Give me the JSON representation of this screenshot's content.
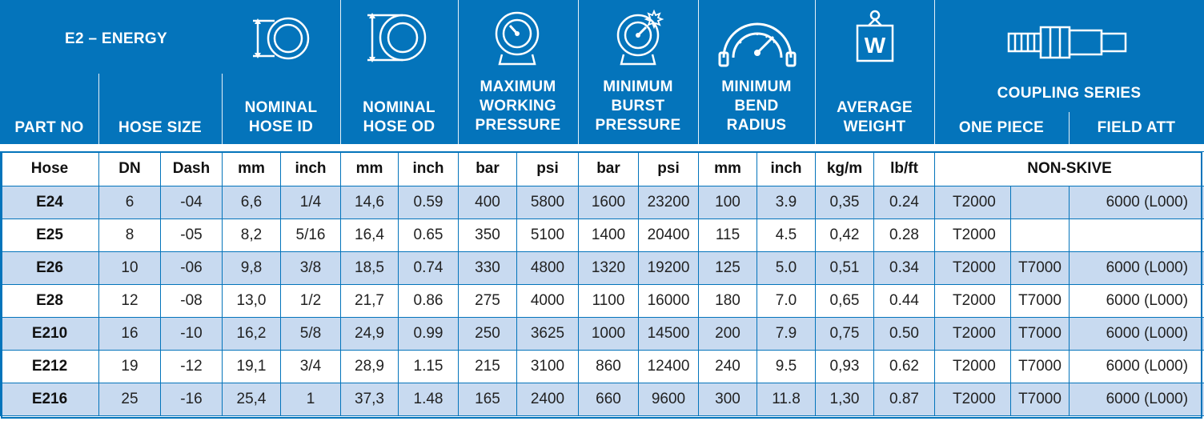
{
  "header": {
    "series_title": "E2 – ENERGY",
    "part_no": "PART NO",
    "hose_size": "HOSE SIZE",
    "nominal_id": [
      "NOMINAL",
      "HOSE ID"
    ],
    "nominal_od": [
      "NOMINAL",
      "HOSE OD"
    ],
    "max_working": [
      "MAXIMUM",
      "WORKING",
      "PRESSURE"
    ],
    "min_burst": [
      "MINIMUM",
      "BURST",
      "PRESSURE"
    ],
    "min_bend": [
      "MINIMUM",
      "BEND",
      "RADIUS"
    ],
    "avg_weight": [
      "AVERAGE",
      "WEIGHT"
    ],
    "coupling_series": "COUPLING SERIES",
    "one_piece": "ONE PIECE",
    "field_att": "FIELD ATT",
    "weight_icon_letter": "W"
  },
  "icons": [
    "hose-id-icon",
    "hose-od-icon",
    "pressure-gauge-icon",
    "burst-gauge-icon",
    "bend-radius-icon",
    "weight-icon",
    "coupling-fitting-icon"
  ],
  "colors": {
    "header_blue": "#0474bb",
    "alt_row": "#c8daf0"
  },
  "units": [
    "Hose",
    "DN",
    "Dash",
    "mm",
    "inch",
    "mm",
    "inch",
    "bar",
    "psi",
    "bar",
    "psi",
    "mm",
    "inch",
    "kg/m",
    "lb/ft",
    "NON-SKIVE"
  ],
  "rows": [
    [
      "E24",
      "6",
      "-04",
      "6,6",
      "1/4",
      "14,6",
      "0.59",
      "400",
      "5800",
      "1600",
      "23200",
      "100",
      "3.9",
      "0,35",
      "0.24",
      "T2000",
      "",
      "6000 (L000)"
    ],
    [
      "E25",
      "8",
      "-05",
      "8,2",
      "5/16",
      "16,4",
      "0.65",
      "350",
      "5100",
      "1400",
      "20400",
      "115",
      "4.5",
      "0,42",
      "0.28",
      "T2000",
      "",
      ""
    ],
    [
      "E26",
      "10",
      "-06",
      "9,8",
      "3/8",
      "18,5",
      "0.74",
      "330",
      "4800",
      "1320",
      "19200",
      "125",
      "5.0",
      "0,51",
      "0.34",
      "T2000",
      "T7000",
      "6000 (L000)"
    ],
    [
      "E28",
      "12",
      "-08",
      "13,0",
      "1/2",
      "21,7",
      "0.86",
      "275",
      "4000",
      "1100",
      "16000",
      "180",
      "7.0",
      "0,65",
      "0.44",
      "T2000",
      "T7000",
      "6000 (L000)"
    ],
    [
      "E210",
      "16",
      "-10",
      "16,2",
      "5/8",
      "24,9",
      "0.99",
      "250",
      "3625",
      "1000",
      "14500",
      "200",
      "7.9",
      "0,75",
      "0.50",
      "T2000",
      "T7000",
      "6000 (L000)"
    ],
    [
      "E212",
      "19",
      "-12",
      "19,1",
      "3/4",
      "28,9",
      "1.15",
      "215",
      "3100",
      "860",
      "12400",
      "240",
      "9.5",
      "0,93",
      "0.62",
      "T2000",
      "T7000",
      "6000 (L000)"
    ],
    [
      "E216",
      "25",
      "-16",
      "25,4",
      "1",
      "37,3",
      "1.48",
      "165",
      "2400",
      "660",
      "9600",
      "300",
      "11.8",
      "1,30",
      "0.87",
      "T2000",
      "T7000",
      "6000 (L000)"
    ]
  ]
}
